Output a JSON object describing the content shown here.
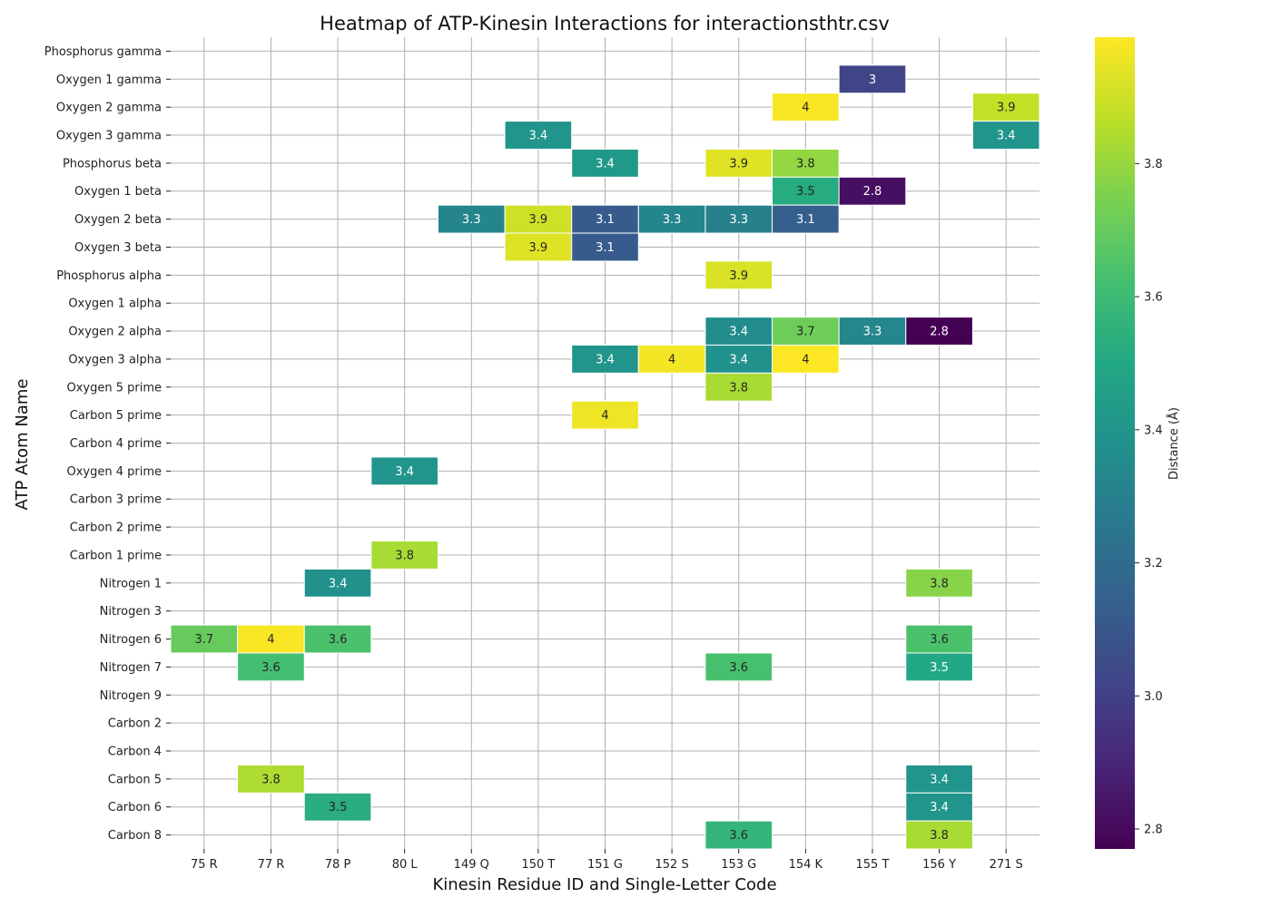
{
  "chart_data": {
    "type": "heatmap",
    "title": "Heatmap of ATP-Kinesin Interactions for interactionsthtr.csv",
    "xlabel": "Kinesin Residue ID and Single-Letter Code",
    "ylabel": "ATP Atom Name",
    "colorbar_label": "Distance (Å)",
    "colormap": "viridis",
    "value_range": [
      2.77,
      3.99
    ],
    "colorbar_ticks": [
      "2.8",
      "3.0",
      "3.2",
      "3.4",
      "3.6",
      "3.8"
    ],
    "grid": true,
    "x_categories": [
      "75 R",
      "77 R",
      "78 P",
      "80 L",
      "149 Q",
      "150 T",
      "151 G",
      "152 S",
      "153 G",
      "154 K",
      "155 T",
      "156 Y",
      "271 S"
    ],
    "y_categories": [
      "Phosphorus gamma",
      "Oxygen 1 gamma",
      "Oxygen 2 gamma",
      "Oxygen 3 gamma",
      "Phosphorus beta",
      "Oxygen 1 beta",
      "Oxygen 2 beta",
      "Oxygen 3 beta",
      "Phosphorus alpha",
      "Oxygen 1 alpha",
      "Oxygen 2 alpha",
      "Oxygen 3 alpha",
      "Oxygen 5 prime",
      "Carbon 5 prime",
      "Carbon 4 prime",
      "Oxygen 4 prime",
      "Carbon 3 prime",
      "Carbon 2 prime",
      "Carbon 1 prime",
      "Nitrogen 1",
      "Nitrogen 3",
      "Nitrogen 6",
      "Nitrogen 7",
      "Nitrogen 9",
      "Carbon 2",
      "Carbon 4",
      "Carbon 5",
      "Carbon 6",
      "Carbon 8"
    ],
    "cells": [
      {
        "y": "Oxygen 1 gamma",
        "x": "155 T",
        "value": 3.02,
        "label": "3"
      },
      {
        "y": "Oxygen 2 gamma",
        "x": "154 K",
        "value": 3.98,
        "label": "4"
      },
      {
        "y": "Oxygen 2 gamma",
        "x": "271 S",
        "value": 3.88,
        "label": "3.9"
      },
      {
        "y": "Oxygen 3 gamma",
        "x": "150 T",
        "value": 3.4,
        "label": "3.4"
      },
      {
        "y": "Oxygen 3 gamma",
        "x": "271 S",
        "value": 3.4,
        "label": "3.4"
      },
      {
        "y": "Phosphorus beta",
        "x": "151 G",
        "value": 3.42,
        "label": "3.4"
      },
      {
        "y": "Phosphorus beta",
        "x": "153 G",
        "value": 3.93,
        "label": "3.9"
      },
      {
        "y": "Phosphorus beta",
        "x": "154 K",
        "value": 3.79,
        "label": "3.8"
      },
      {
        "y": "Oxygen 1 beta",
        "x": "154 K",
        "value": 3.52,
        "label": "3.5"
      },
      {
        "y": "Oxygen 1 beta",
        "x": "155 T",
        "value": 2.82,
        "label": "2.8"
      },
      {
        "y": "Oxygen 2 beta",
        "x": "149 Q",
        "value": 3.32,
        "label": "3.3"
      },
      {
        "y": "Oxygen 2 beta",
        "x": "150 T",
        "value": 3.9,
        "label": "3.9"
      },
      {
        "y": "Oxygen 2 beta",
        "x": "151 G",
        "value": 3.12,
        "label": "3.1"
      },
      {
        "y": "Oxygen 2 beta",
        "x": "152 S",
        "value": 3.32,
        "label": "3.3"
      },
      {
        "y": "Oxygen 2 beta",
        "x": "153 G",
        "value": 3.3,
        "label": "3.3"
      },
      {
        "y": "Oxygen 2 beta",
        "x": "154 K",
        "value": 3.14,
        "label": "3.1"
      },
      {
        "y": "Oxygen 3 beta",
        "x": "150 T",
        "value": 3.93,
        "label": "3.9"
      },
      {
        "y": "Oxygen 3 beta",
        "x": "151 G",
        "value": 3.12,
        "label": "3.1"
      },
      {
        "y": "Phosphorus alpha",
        "x": "153 G",
        "value": 3.92,
        "label": "3.9"
      },
      {
        "y": "Oxygen 2 alpha",
        "x": "153 G",
        "value": 3.36,
        "label": "3.4"
      },
      {
        "y": "Oxygen 2 alpha",
        "x": "154 K",
        "value": 3.72,
        "label": "3.7"
      },
      {
        "y": "Oxygen 2 alpha",
        "x": "155 T",
        "value": 3.33,
        "label": "3.3"
      },
      {
        "y": "Oxygen 2 alpha",
        "x": "156 Y",
        "value": 2.77,
        "label": "2.8"
      },
      {
        "y": "Oxygen 3 alpha",
        "x": "151 G",
        "value": 3.4,
        "label": "3.4"
      },
      {
        "y": "Oxygen 3 alpha",
        "x": "152 S",
        "value": 3.97,
        "label": "4"
      },
      {
        "y": "Oxygen 3 alpha",
        "x": "153 G",
        "value": 3.38,
        "label": "3.4"
      },
      {
        "y": "Oxygen 3 alpha",
        "x": "154 K",
        "value": 3.99,
        "label": "4"
      },
      {
        "y": "Oxygen 5 prime",
        "x": "153 G",
        "value": 3.83,
        "label": "3.8"
      },
      {
        "y": "Carbon 5 prime",
        "x": "151 G",
        "value": 3.96,
        "label": "4"
      },
      {
        "y": "Oxygen 4 prime",
        "x": "80 L",
        "value": 3.4,
        "label": "3.4"
      },
      {
        "y": "Carbon 1 prime",
        "x": "80 L",
        "value": 3.83,
        "label": "3.8"
      },
      {
        "y": "Nitrogen 1",
        "x": "78 P",
        "value": 3.38,
        "label": "3.4"
      },
      {
        "y": "Nitrogen 1",
        "x": "156 Y",
        "value": 3.77,
        "label": "3.8"
      },
      {
        "y": "Nitrogen 6",
        "x": "75 R",
        "value": 3.7,
        "label": "3.7"
      },
      {
        "y": "Nitrogen 6",
        "x": "77 R",
        "value": 3.98,
        "label": "4"
      },
      {
        "y": "Nitrogen 6",
        "x": "78 P",
        "value": 3.64,
        "label": "3.6"
      },
      {
        "y": "Nitrogen 6",
        "x": "156 Y",
        "value": 3.64,
        "label": "3.6"
      },
      {
        "y": "Nitrogen 7",
        "x": "77 R",
        "value": 3.62,
        "label": "3.6"
      },
      {
        "y": "Nitrogen 7",
        "x": "153 G",
        "value": 3.63,
        "label": "3.6"
      },
      {
        "y": "Nitrogen 7",
        "x": "156 Y",
        "value": 3.5,
        "label": "3.5"
      },
      {
        "y": "Carbon 5",
        "x": "77 R",
        "value": 3.84,
        "label": "3.8"
      },
      {
        "y": "Carbon 5",
        "x": "156 Y",
        "value": 3.4,
        "label": "3.4"
      },
      {
        "y": "Carbon 6",
        "x": "78 P",
        "value": 3.53,
        "label": "3.5"
      },
      {
        "y": "Carbon 6",
        "x": "156 Y",
        "value": 3.4,
        "label": "3.4"
      },
      {
        "y": "Carbon 8",
        "x": "153 G",
        "value": 3.57,
        "label": "3.6"
      },
      {
        "y": "Carbon 8",
        "x": "156 Y",
        "value": 3.83,
        "label": "3.8"
      }
    ]
  }
}
